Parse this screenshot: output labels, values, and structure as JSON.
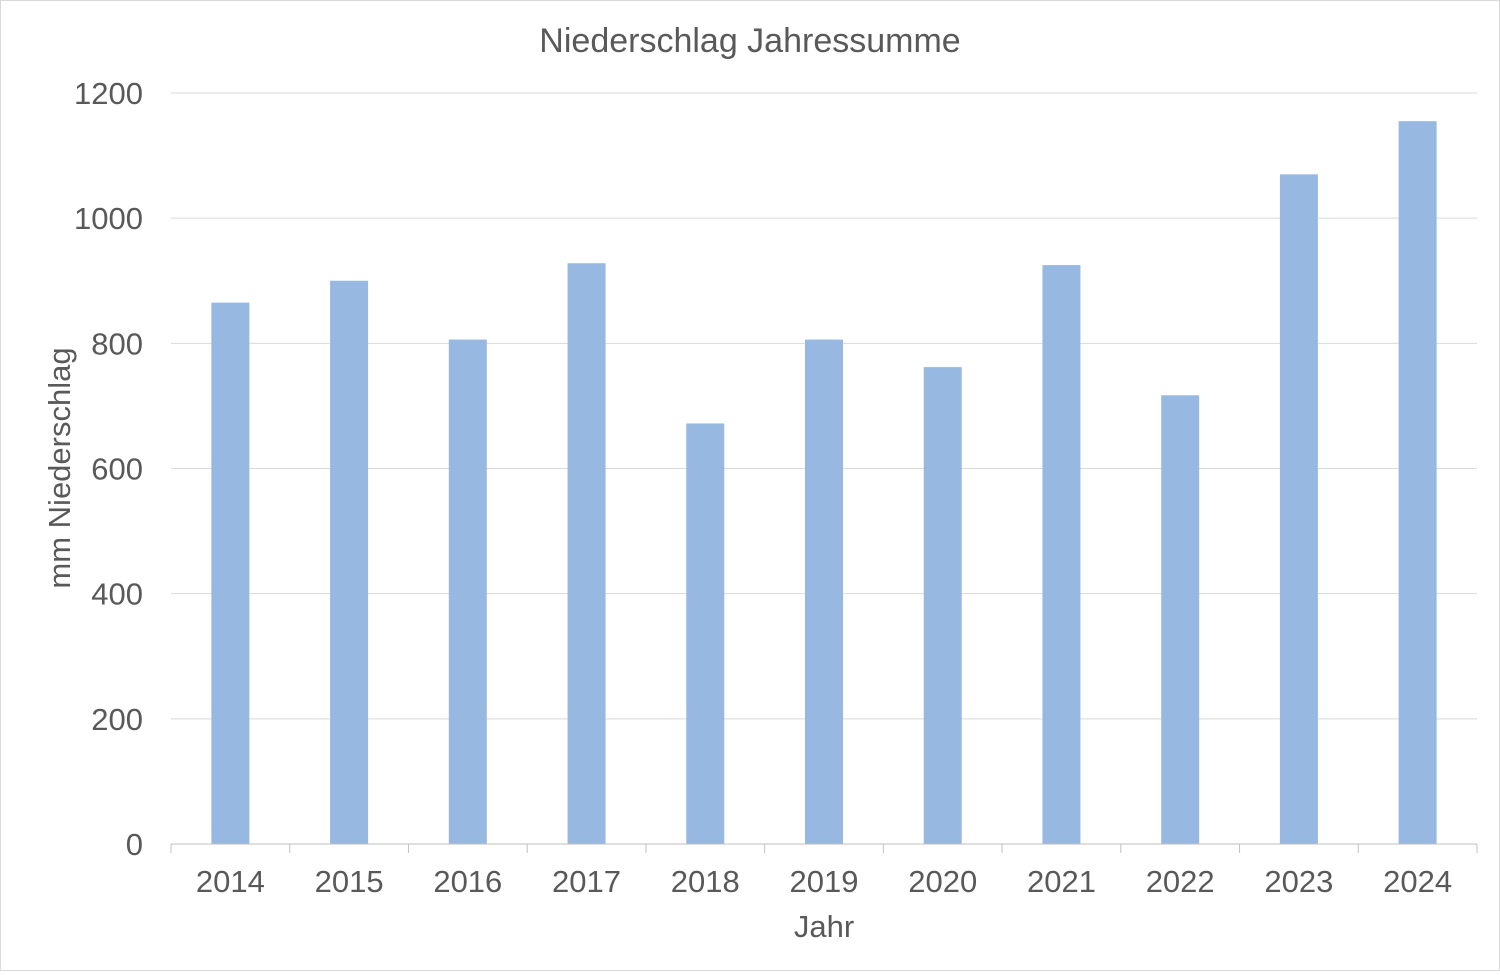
{
  "chart_data": {
    "type": "bar",
    "title": "Niederschlag Jahressumme",
    "xlabel": "Jahr",
    "ylabel": "mm Niederschlag",
    "categories": [
      "2014",
      "2015",
      "2016",
      "2017",
      "2018",
      "2019",
      "2020",
      "2021",
      "2022",
      "2023",
      "2024"
    ],
    "series": [
      {
        "values": [
          865,
          900,
          806,
          928,
          672,
          806,
          762,
          925,
          717,
          1070,
          1155
        ]
      }
    ],
    "ylim": [
      0,
      1200
    ],
    "yticks": [
      0,
      200,
      400,
      600,
      800,
      1000,
      1200
    ],
    "grid": true,
    "legend": "none",
    "colors": {
      "bar": "#97b8e0",
      "grid": "#d9d9d9",
      "text": "#595959"
    }
  }
}
